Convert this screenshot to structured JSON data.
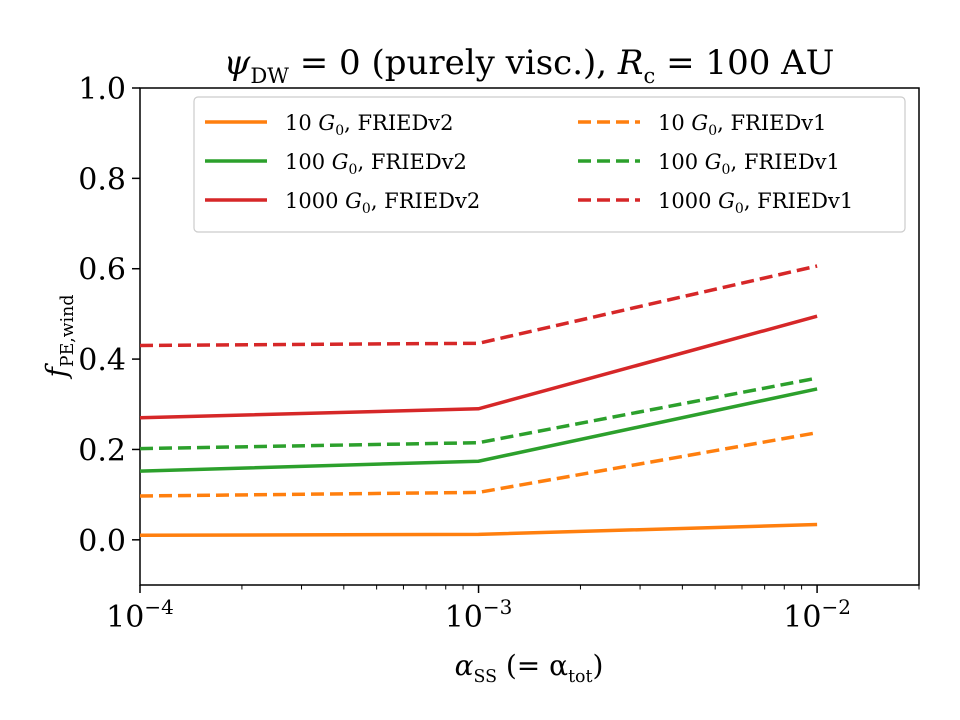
{
  "chart_data": {
    "type": "line",
    "title": {
      "psi": "ψ",
      "psi_sub": "DW",
      "middle": " = 0 (purely visc.), ",
      "r": "R",
      "r_sub": "c",
      "end": " = 100 AU"
    },
    "xlabel": {
      "alpha": "α",
      "alpha_sub": "SS",
      "mid": " (= α",
      "tot_sub": "tot",
      "end": ")"
    },
    "ylabel": {
      "f": "f",
      "f_sub": "PE,wind"
    },
    "x_scale": "log",
    "xlim": [
      0.0001,
      0.02
    ],
    "ylim": [
      -0.1,
      1.0
    ],
    "x_ticks": [
      {
        "value": 0.0001,
        "base": "10",
        "exp": "−4"
      },
      {
        "value": 0.001,
        "base": "10",
        "exp": "−3"
      },
      {
        "value": 0.01,
        "base": "10",
        "exp": "−2"
      }
    ],
    "y_ticks": [
      {
        "value": 0.0,
        "label": "0.0"
      },
      {
        "value": 0.2,
        "label": "0.2"
      },
      {
        "value": 0.4,
        "label": "0.4"
      },
      {
        "value": 0.6,
        "label": "0.6"
      },
      {
        "value": 0.8,
        "label": "0.8"
      },
      {
        "value": 1.0,
        "label": "1.0"
      }
    ],
    "grid": false,
    "legend_position": "top",
    "x": [
      0.0001,
      0.001,
      0.01
    ],
    "series": [
      {
        "name_num": "10",
        "name_g": "G",
        "name_sub": "0",
        "name_rest": ", FRIEDv2",
        "color": "#ff7f0e",
        "dashed": false,
        "values": [
          0.01,
          0.012,
          0.034
        ]
      },
      {
        "name_num": "100",
        "name_g": "G",
        "name_sub": "0",
        "name_rest": ", FRIEDv2",
        "color": "#2ca02c",
        "dashed": false,
        "values": [
          0.152,
          0.174,
          0.334
        ]
      },
      {
        "name_num": "1000",
        "name_g": "G",
        "name_sub": "0",
        "name_rest": ", FRIEDv2",
        "color": "#d62728",
        "dashed": false,
        "values": [
          0.27,
          0.29,
          0.495
        ]
      },
      {
        "name_num": "10",
        "name_g": "G",
        "name_sub": "0",
        "name_rest": ", FRIEDv1",
        "color": "#ff7f0e",
        "dashed": true,
        "values": [
          0.097,
          0.105,
          0.237
        ]
      },
      {
        "name_num": "100",
        "name_g": "G",
        "name_sub": "0",
        "name_rest": ", FRIEDv1",
        "color": "#2ca02c",
        "dashed": true,
        "values": [
          0.202,
          0.215,
          0.358
        ]
      },
      {
        "name_num": "1000",
        "name_g": "G",
        "name_sub": "0",
        "name_rest": ", FRIEDv1",
        "color": "#d62728",
        "dashed": true,
        "values": [
          0.43,
          0.435,
          0.606
        ]
      }
    ]
  }
}
